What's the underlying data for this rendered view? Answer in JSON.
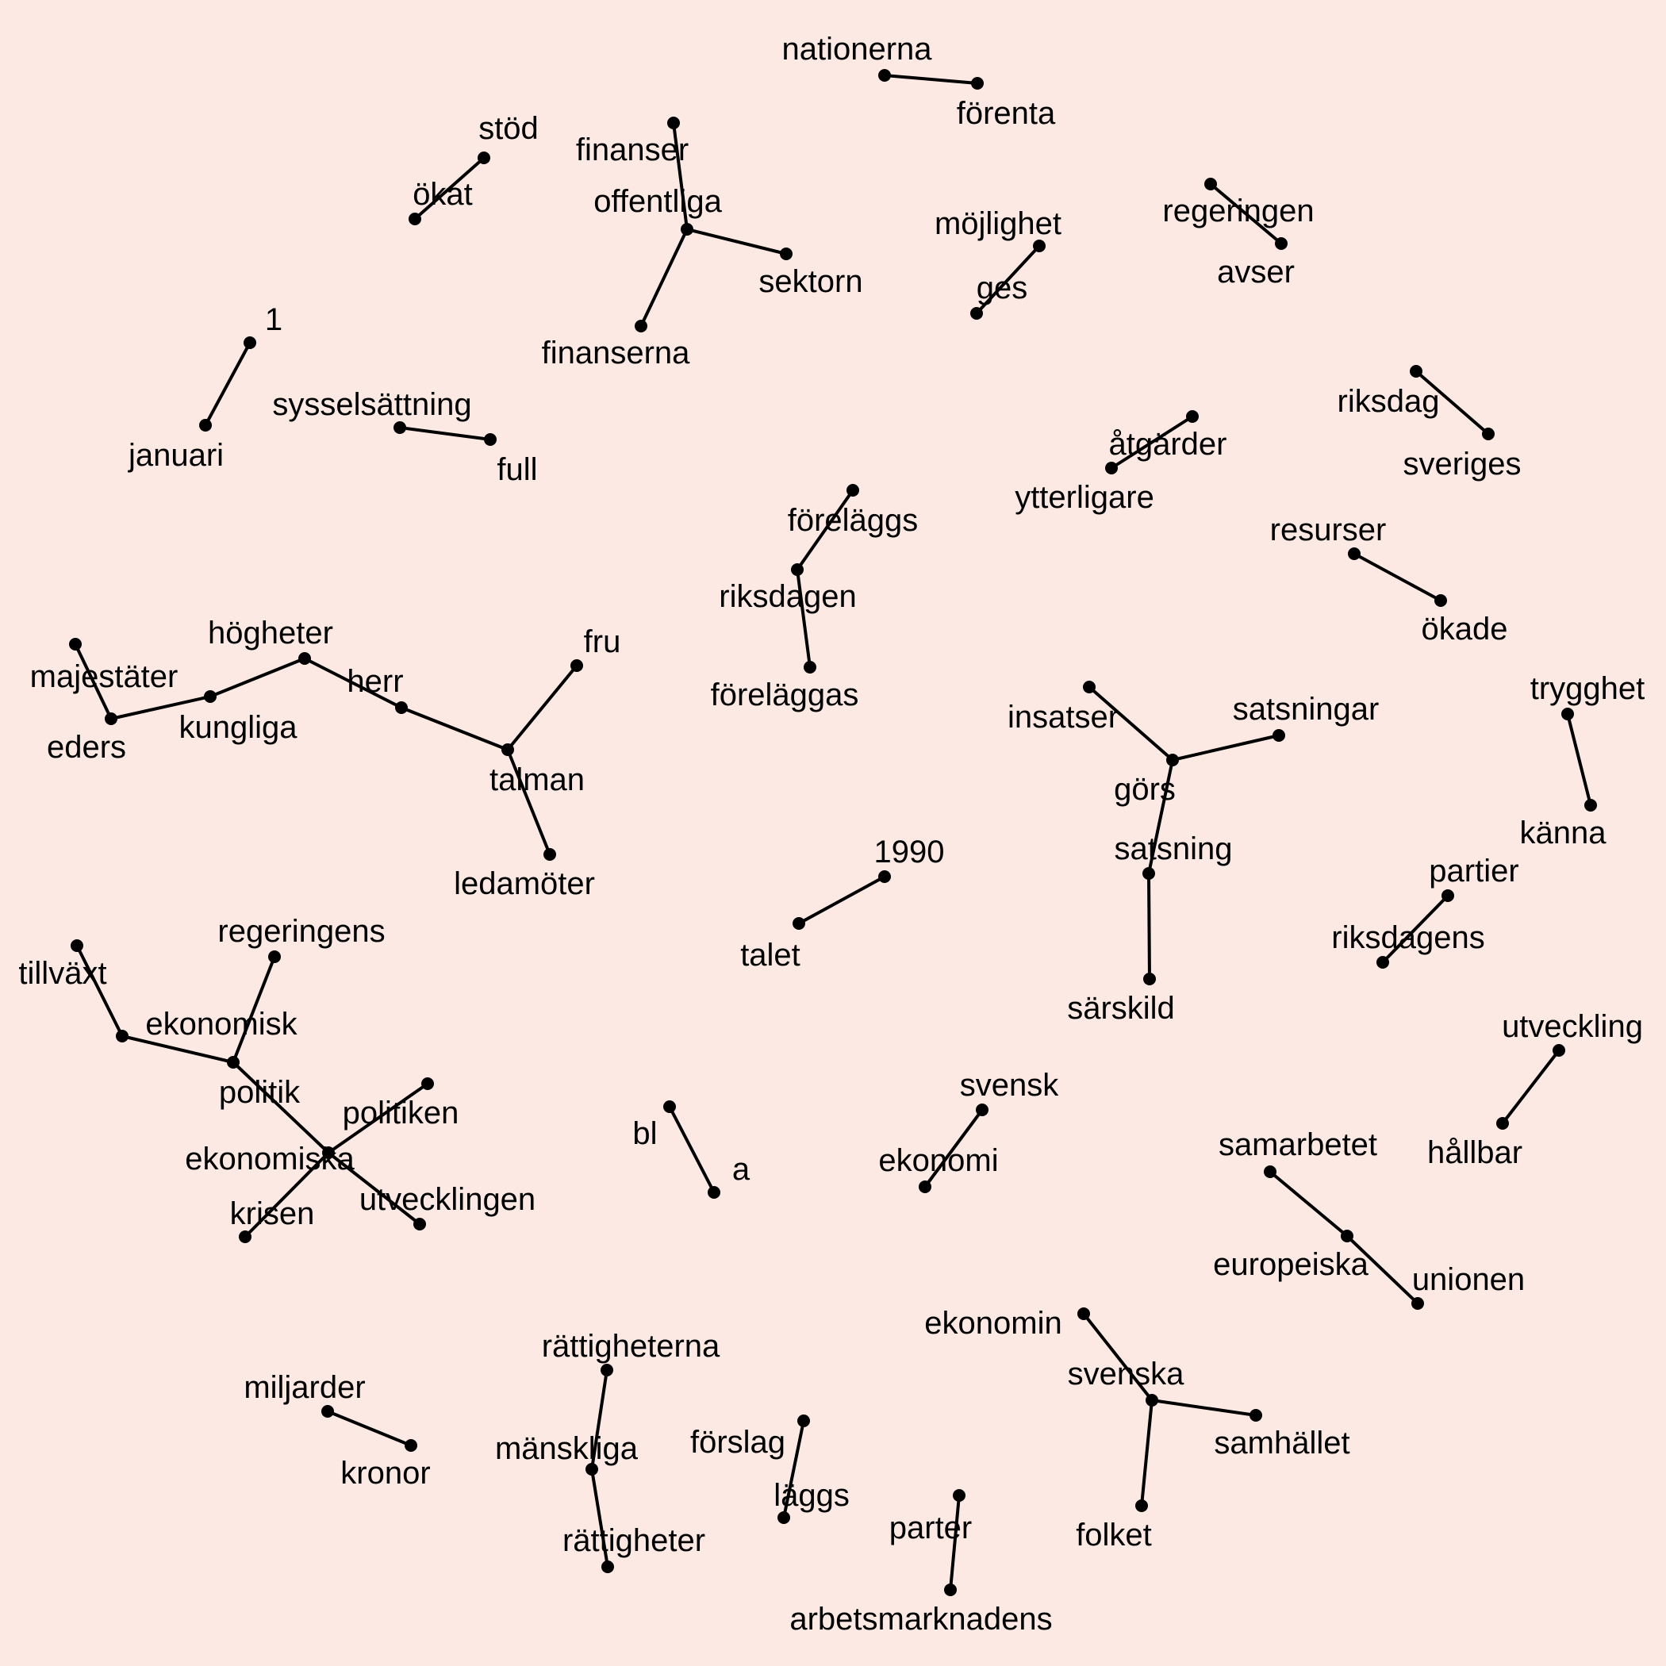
{
  "theme": {
    "background": "#fce9e3",
    "ink": "#000000"
  },
  "graph": {
    "nodes": [
      {
        "id": "nationerna",
        "label": "nationerna"
      },
      {
        "id": "forenta",
        "label": "förenta"
      },
      {
        "id": "stod",
        "label": "stöd"
      },
      {
        "id": "okat",
        "label": "ökat"
      },
      {
        "id": "finanser",
        "label": "finanser"
      },
      {
        "id": "offentliga",
        "label": "offentliga"
      },
      {
        "id": "sektorn",
        "label": "sektorn"
      },
      {
        "id": "finanserna",
        "label": "finanserna"
      },
      {
        "id": "mojlighet",
        "label": "möjlighet"
      },
      {
        "id": "ges",
        "label": "ges"
      },
      {
        "id": "regeringen",
        "label": "regeringen"
      },
      {
        "id": "avser",
        "label": "avser"
      },
      {
        "id": "one",
        "label": "1"
      },
      {
        "id": "januari",
        "label": "januari"
      },
      {
        "id": "sysselsattning",
        "label": "sysselsättning"
      },
      {
        "id": "full",
        "label": "full"
      },
      {
        "id": "riksdag",
        "label": "riksdag"
      },
      {
        "id": "sveriges",
        "label": "sveriges"
      },
      {
        "id": "atgarder",
        "label": "åtgärder"
      },
      {
        "id": "ytterligare",
        "label": "ytterligare"
      },
      {
        "id": "forelaggs",
        "label": "föreläggs"
      },
      {
        "id": "riksdagen",
        "label": "riksdagen"
      },
      {
        "id": "forelaggas",
        "label": "föreläggas"
      },
      {
        "id": "resurser",
        "label": "resurser"
      },
      {
        "id": "okade",
        "label": "ökade"
      },
      {
        "id": "hogheter",
        "label": "högheter"
      },
      {
        "id": "majestater",
        "label": "majestäter"
      },
      {
        "id": "eders",
        "label": "eders"
      },
      {
        "id": "kungliga",
        "label": "kungliga"
      },
      {
        "id": "herr",
        "label": "herr"
      },
      {
        "id": "fru",
        "label": "fru"
      },
      {
        "id": "talman",
        "label": "talman"
      },
      {
        "id": "ledamoter",
        "label": "ledamöter"
      },
      {
        "id": "insatser",
        "label": "insatser"
      },
      {
        "id": "satsningar",
        "label": "satsningar"
      },
      {
        "id": "gors",
        "label": "görs"
      },
      {
        "id": "satsning",
        "label": "satsning"
      },
      {
        "id": "sarskild",
        "label": "särskild"
      },
      {
        "id": "trygghet",
        "label": "trygghet"
      },
      {
        "id": "kanna",
        "label": "känna"
      },
      {
        "id": "y1990",
        "label": "1990"
      },
      {
        "id": "talet",
        "label": "talet"
      },
      {
        "id": "partier",
        "label": "partier"
      },
      {
        "id": "riksdagens",
        "label": "riksdagens"
      },
      {
        "id": "regeringens",
        "label": "regeringens"
      },
      {
        "id": "tillvaxt",
        "label": "tillväxt"
      },
      {
        "id": "ekonomisk",
        "label": "ekonomisk"
      },
      {
        "id": "politik",
        "label": "politik"
      },
      {
        "id": "politiken",
        "label": "politiken"
      },
      {
        "id": "ekonomiska",
        "label": "ekonomiska"
      },
      {
        "id": "krisen",
        "label": "krisen"
      },
      {
        "id": "utvecklingen",
        "label": "utvecklingen"
      },
      {
        "id": "utveckling",
        "label": "utveckling"
      },
      {
        "id": "hallbar",
        "label": "hållbar"
      },
      {
        "id": "svensk",
        "label": "svensk"
      },
      {
        "id": "ekonomi",
        "label": "ekonomi"
      },
      {
        "id": "bl",
        "label": "bl"
      },
      {
        "id": "a",
        "label": "a"
      },
      {
        "id": "samarbetet",
        "label": "samarbetet"
      },
      {
        "id": "europeiska",
        "label": "europeiska"
      },
      {
        "id": "unionen",
        "label": "unionen"
      },
      {
        "id": "ekonomin",
        "label": "ekonomin"
      },
      {
        "id": "svenska",
        "label": "svenska"
      },
      {
        "id": "samhallet",
        "label": "samhället"
      },
      {
        "id": "folket",
        "label": "folket"
      },
      {
        "id": "rattigheterna",
        "label": "rättigheterna"
      },
      {
        "id": "manskliga",
        "label": "mänskliga"
      },
      {
        "id": "rattigheter",
        "label": "rättigheter"
      },
      {
        "id": "miljarder",
        "label": "miljarder"
      },
      {
        "id": "kronor",
        "label": "kronor"
      },
      {
        "id": "forslag",
        "label": "förslag"
      },
      {
        "id": "laggs",
        "label": "läggs"
      },
      {
        "id": "parter",
        "label": "parter"
      },
      {
        "id": "arbetsmarknadens",
        "label": "arbetsmarknadens"
      }
    ],
    "edges": [
      [
        "nationerna",
        "forenta"
      ],
      [
        "stod",
        "okat"
      ],
      [
        "finanser",
        "offentliga"
      ],
      [
        "offentliga",
        "sektorn"
      ],
      [
        "offentliga",
        "finanserna"
      ],
      [
        "mojlighet",
        "ges"
      ],
      [
        "regeringen",
        "avser"
      ],
      [
        "one",
        "januari"
      ],
      [
        "sysselsattning",
        "full"
      ],
      [
        "riksdag",
        "sveriges"
      ],
      [
        "atgarder",
        "ytterligare"
      ],
      [
        "forelaggs",
        "riksdagen"
      ],
      [
        "riksdagen",
        "forelaggas"
      ],
      [
        "resurser",
        "okade"
      ],
      [
        "majestater",
        "eders"
      ],
      [
        "eders",
        "kungliga"
      ],
      [
        "kungliga",
        "hogheter"
      ],
      [
        "hogheter",
        "herr"
      ],
      [
        "herr",
        "talman"
      ],
      [
        "fru",
        "talman"
      ],
      [
        "talman",
        "ledamoter"
      ],
      [
        "insatser",
        "gors"
      ],
      [
        "satsningar",
        "gors"
      ],
      [
        "gors",
        "satsning"
      ],
      [
        "satsning",
        "sarskild"
      ],
      [
        "trygghet",
        "kanna"
      ],
      [
        "y1990",
        "talet"
      ],
      [
        "partier",
        "riksdagens"
      ],
      [
        "tillvaxt",
        "ekonomisk"
      ],
      [
        "ekonomisk",
        "politik"
      ],
      [
        "regeringens",
        "politik"
      ],
      [
        "politik",
        "ekonomiska"
      ],
      [
        "politiken",
        "ekonomiska"
      ],
      [
        "ekonomiska",
        "krisen"
      ],
      [
        "ekonomiska",
        "utvecklingen"
      ],
      [
        "utveckling",
        "hallbar"
      ],
      [
        "svensk",
        "ekonomi"
      ],
      [
        "bl",
        "a"
      ],
      [
        "samarbetet",
        "europeiska"
      ],
      [
        "europeiska",
        "unionen"
      ],
      [
        "ekonomin",
        "svenska"
      ],
      [
        "svenska",
        "samhallet"
      ],
      [
        "svenska",
        "folket"
      ],
      [
        "rattigheterna",
        "manskliga"
      ],
      [
        "manskliga",
        "rattigheter"
      ],
      [
        "miljarder",
        "kronor"
      ],
      [
        "forslag",
        "laggs"
      ],
      [
        "parter",
        "arbetsmarknadens"
      ]
    ]
  }
}
